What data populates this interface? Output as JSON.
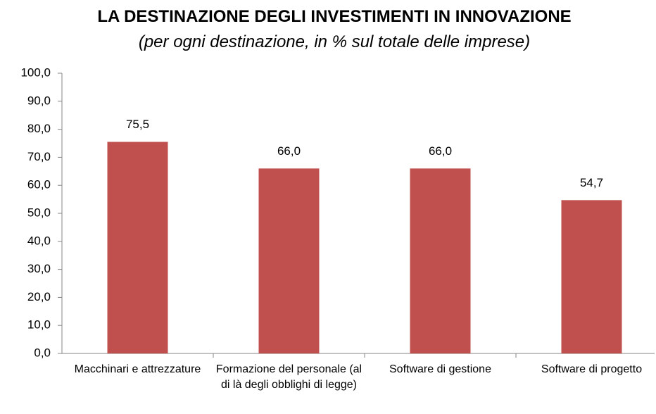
{
  "chart_data": {
    "type": "bar",
    "title": "LA DESTINAZIONE DEGLI INVESTIMENTI IN INNOVAZIONE",
    "subtitle": "(per ogni destinazione, in % sul totale delle imprese)",
    "categories": [
      "Macchinari e attrezzature",
      "Formazione del personale (al di là degli obblighi di legge)",
      "Software di gestione",
      "Software di progetto"
    ],
    "values": [
      75.5,
      66.0,
      66.0,
      54.7
    ],
    "value_labels": [
      "75,5",
      "66,0",
      "66,0",
      "54,7"
    ],
    "color": "#c0504d",
    "ylim": [
      0,
      100
    ],
    "yticks": [
      {
        "value": 0,
        "label": "0,0"
      },
      {
        "value": 10,
        "label": "10,0"
      },
      {
        "value": 20,
        "label": "20,0"
      },
      {
        "value": 30,
        "label": "30,0"
      },
      {
        "value": 40,
        "label": "40,0"
      },
      {
        "value": 50,
        "label": "50,0"
      },
      {
        "value": 60,
        "label": "60,0"
      },
      {
        "value": 70,
        "label": "70,0"
      },
      {
        "value": 80,
        "label": "80,0"
      },
      {
        "value": 90,
        "label": "90,0"
      },
      {
        "value": 100,
        "label": "100,0"
      }
    ],
    "grid": false
  }
}
